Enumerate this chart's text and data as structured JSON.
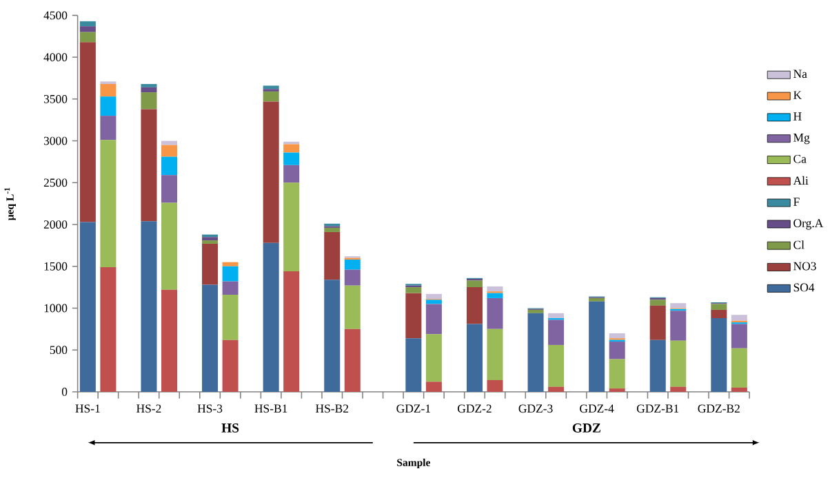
{
  "chart_data": {
    "type": "bar",
    "stacked": true,
    "xlabel": "Sample",
    "ylabel": "μeq L$^{-1}$",
    "categories": [
      "HS-1",
      null,
      null,
      "HS-2",
      null,
      null,
      "HS-3",
      null,
      null,
      "HS-B1",
      null,
      null,
      "HS-B2",
      null,
      null,
      null,
      "GDZ-1",
      null,
      null,
      "GDZ-2",
      null,
      null,
      "GDZ-3",
      null,
      null,
      "GDZ-4",
      null,
      null,
      "GDZ-B1",
      null,
      null,
      "GDZ-B2",
      null
    ],
    "series": [
      {
        "name": "SO4",
        "color": "#3f6a9c",
        "values": [
          2030,
          null,
          null,
          2040,
          null,
          null,
          1280,
          null,
          null,
          1780,
          null,
          null,
          1340,
          null,
          null,
          null,
          640,
          null,
          null,
          810,
          null,
          null,
          940,
          null,
          null,
          1080,
          null,
          null,
          620,
          null,
          null,
          880,
          null
        ]
      },
      {
        "name": "NO3",
        "color": "#9c403d",
        "values": [
          2150,
          null,
          null,
          1340,
          null,
          null,
          490,
          null,
          null,
          1690,
          null,
          null,
          570,
          null,
          null,
          null,
          540,
          null,
          null,
          440,
          null,
          null,
          null,
          null,
          null,
          null,
          null,
          null,
          410,
          null,
          null,
          100,
          null
        ]
      },
      {
        "name": "Cl",
        "color": "#7f9a48",
        "values": [
          120,
          null,
          null,
          200,
          null,
          null,
          40,
          null,
          null,
          120,
          null,
          null,
          50,
          null,
          null,
          null,
          70,
          null,
          null,
          80,
          null,
          null,
          40,
          null,
          null,
          40,
          null,
          null,
          70,
          null,
          null,
          70,
          null
        ]
      },
      {
        "name": "Org.A",
        "color": "#664d87",
        "values": [
          70,
          null,
          null,
          60,
          null,
          null,
          40,
          null,
          null,
          30,
          null,
          null,
          20,
          null,
          null,
          null,
          20,
          null,
          null,
          20,
          null,
          null,
          10,
          null,
          null,
          10,
          null,
          null,
          20,
          null,
          null,
          10,
          null
        ]
      },
      {
        "name": "F",
        "color": "#3a8aa0",
        "values": [
          60,
          null,
          null,
          40,
          null,
          null,
          30,
          null,
          null,
          40,
          null,
          null,
          30,
          null,
          null,
          null,
          20,
          null,
          null,
          10,
          null,
          null,
          10,
          null,
          null,
          10,
          null,
          null,
          10,
          null,
          null,
          10,
          null
        ]
      },
      {
        "name": "Ali",
        "color": "#c0504d",
        "values": [
          null,
          1490,
          null,
          null,
          1220,
          null,
          null,
          620,
          null,
          null,
          1440,
          null,
          null,
          750,
          null,
          null,
          null,
          120,
          null,
          null,
          140,
          null,
          null,
          60,
          null,
          null,
          40,
          null,
          null,
          60,
          null,
          null,
          50
        ]
      },
      {
        "name": "Ca",
        "color": "#9bbb59",
        "values": [
          null,
          1520,
          null,
          null,
          1040,
          null,
          null,
          540,
          null,
          null,
          1060,
          null,
          null,
          520,
          null,
          null,
          null,
          570,
          null,
          null,
          610,
          null,
          null,
          500,
          null,
          null,
          350,
          null,
          null,
          550,
          null,
          null,
          470
        ]
      },
      {
        "name": "Mg",
        "color": "#8064a2",
        "values": [
          null,
          290,
          null,
          null,
          330,
          null,
          null,
          160,
          null,
          null,
          210,
          null,
          null,
          190,
          null,
          null,
          null,
          360,
          null,
          null,
          370,
          null,
          null,
          300,
          null,
          null,
          210,
          null,
          null,
          360,
          null,
          null,
          290
        ]
      },
      {
        "name": "H",
        "color": "#00b0f0",
        "values": [
          null,
          230,
          null,
          null,
          220,
          null,
          null,
          180,
          null,
          null,
          150,
          null,
          null,
          120,
          null,
          null,
          null,
          50,
          null,
          null,
          60,
          null,
          null,
          20,
          null,
          null,
          20,
          null,
          null,
          20,
          null,
          null,
          20
        ]
      },
      {
        "name": "K",
        "color": "#f79646",
        "values": [
          null,
          150,
          null,
          null,
          140,
          null,
          null,
          50,
          null,
          null,
          100,
          null,
          null,
          20,
          null,
          null,
          null,
          10,
          null,
          null,
          20,
          null,
          null,
          null,
          null,
          null,
          20,
          null,
          null,
          10,
          null,
          null,
          20
        ]
      },
      {
        "name": "Na",
        "color": "#ccc1da",
        "values": [
          null,
          30,
          null,
          null,
          50,
          null,
          null,
          null,
          null,
          null,
          30,
          null,
          null,
          20,
          null,
          null,
          null,
          60,
          null,
          null,
          60,
          null,
          null,
          60,
          null,
          null,
          60,
          null,
          null,
          60,
          null,
          null,
          70
        ]
      }
    ],
    "ylim": [
      0,
      4500
    ],
    "yticks": [
      0,
      500,
      1000,
      1500,
      2000,
      2500,
      3000,
      3500,
      4000,
      4500
    ],
    "legend": "right",
    "annotations": [
      "HS",
      "GDZ"
    ]
  }
}
